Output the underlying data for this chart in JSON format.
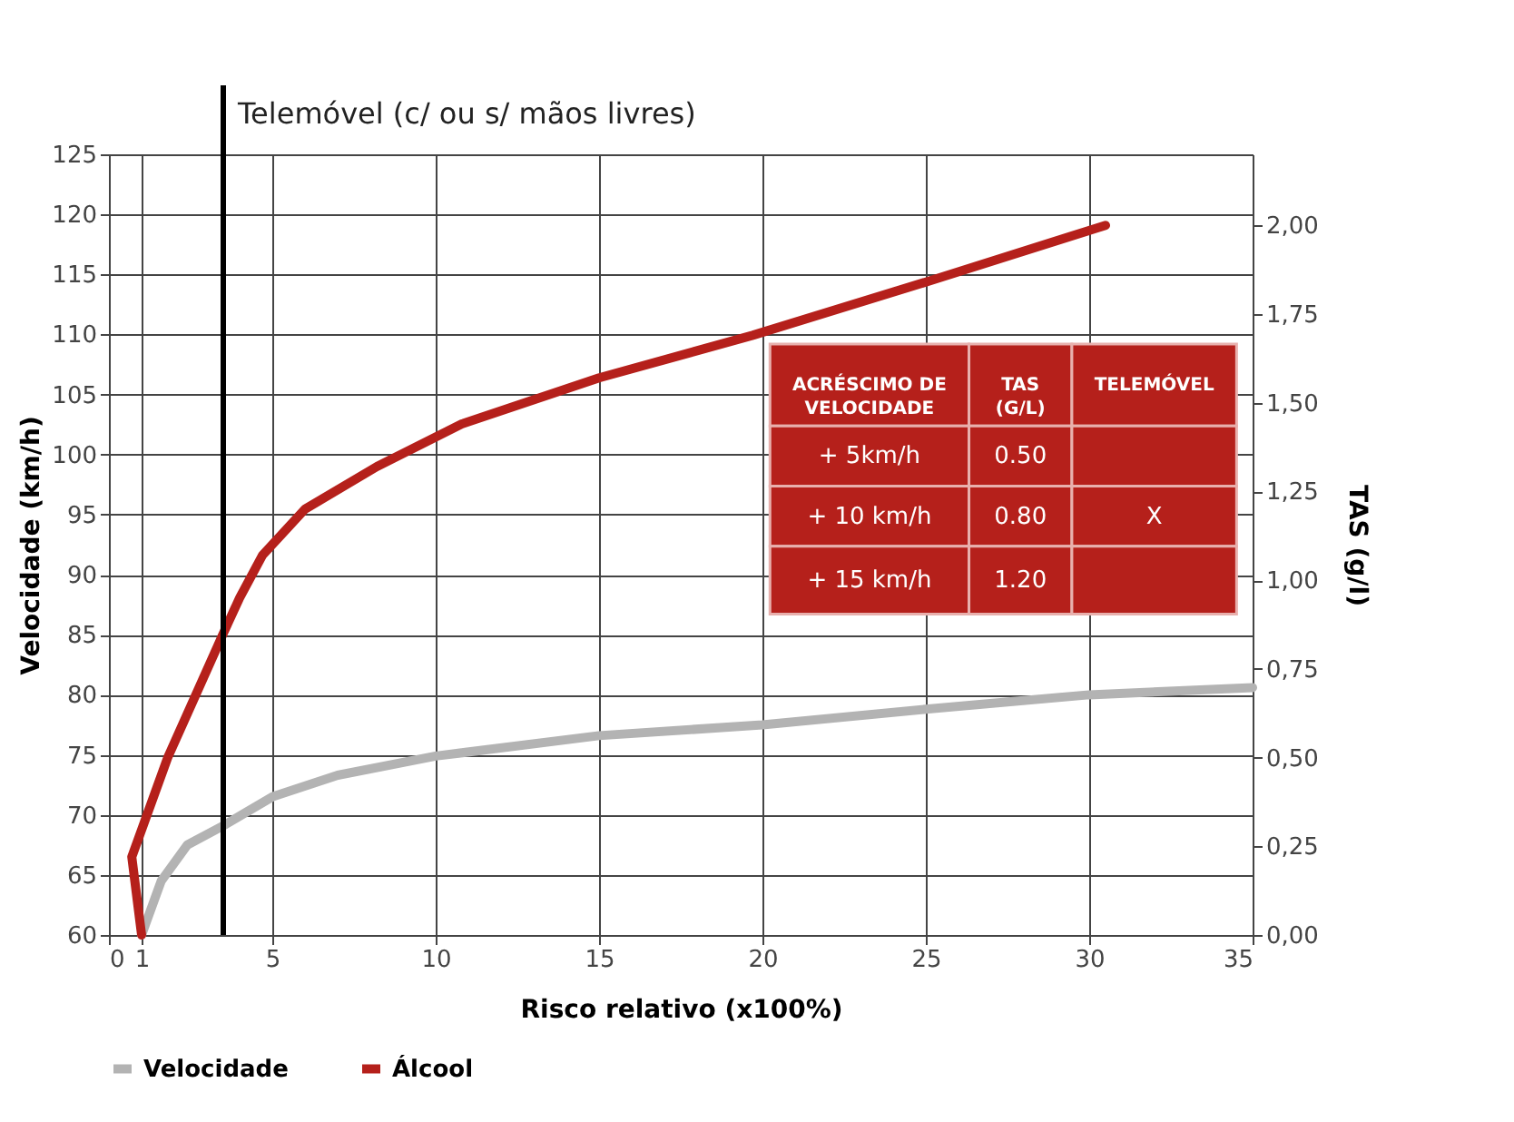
{
  "chart_data": {
    "type": "line",
    "xlabel": "Risco relativo (x100%)",
    "ylabel": "Velocidade (km/h)",
    "y2label": "TAS (g/l)",
    "xlim": [
      0,
      35
    ],
    "xticks": [
      0,
      {
        "value": 1,
        "label": "1"
      },
      5,
      10,
      15,
      20,
      25,
      30,
      35
    ],
    "ylim": [
      60,
      125
    ],
    "yticks": [
      60,
      65,
      70,
      75,
      80,
      85,
      90,
      95,
      100,
      105,
      110,
      115,
      120,
      125
    ],
    "y2lim": [
      0,
      2.2
    ],
    "y2ticks": [
      {
        "value": 0,
        "label": "0,00"
      },
      {
        "value": 0.25,
        "label": "0,25"
      },
      {
        "value": 0.5,
        "label": "0,50"
      },
      {
        "value": 0.75,
        "label": "0,75"
      },
      {
        "value": 1,
        "label": "1,00"
      },
      {
        "value": 1.25,
        "label": "1,25"
      },
      {
        "value": 1.5,
        "label": "1,50"
      },
      {
        "value": 1.75,
        "label": "1,75"
      },
      {
        "value": 2,
        "label": "2,00"
      }
    ],
    "series": [
      {
        "name": "Velocidade",
        "color": "#b3b3b3",
        "x": [
          1,
          1.6,
          2.4,
          3.5,
          5,
          7,
          10,
          15,
          20,
          25,
          30,
          35
        ],
        "values": [
          60,
          64.5,
          67.5,
          69.1,
          71.5,
          73.3,
          74.9,
          76.6,
          77.5,
          78.8,
          80.0,
          80.6
        ]
      },
      {
        "name": "Álcool",
        "color": "#b5201b",
        "axis": "y2",
        "x": [
          1,
          0.7,
          1.8,
          3.5,
          4,
          4.7,
          6,
          8.2,
          10.8,
          15,
          19.7,
          25,
          30.5
        ],
        "values": [
          0,
          0.22,
          0.5,
          0.85,
          0.95,
          1.07,
          1.2,
          1.32,
          1.44,
          1.57,
          1.69,
          1.84,
          2.0
        ]
      }
    ],
    "ref_lines": [
      {
        "axis": "x",
        "value": 3.5,
        "label": "Telemóvel (c/ ou s/ mãos livres)",
        "color": "#000000"
      }
    ],
    "annotations": [
      "ACRÉSCIMO DE VELOCIDADE",
      "TAS (G/L)",
      "TELEMÓVEL",
      "+ 5km/h",
      "0.50",
      null,
      "+ 10 km/h",
      "0.80",
      "X",
      "+ 15 km/h",
      "1.20",
      null
    ],
    "grid": true,
    "legend": "bottom",
    "marker": "none",
    "line_style": "solid"
  }
}
